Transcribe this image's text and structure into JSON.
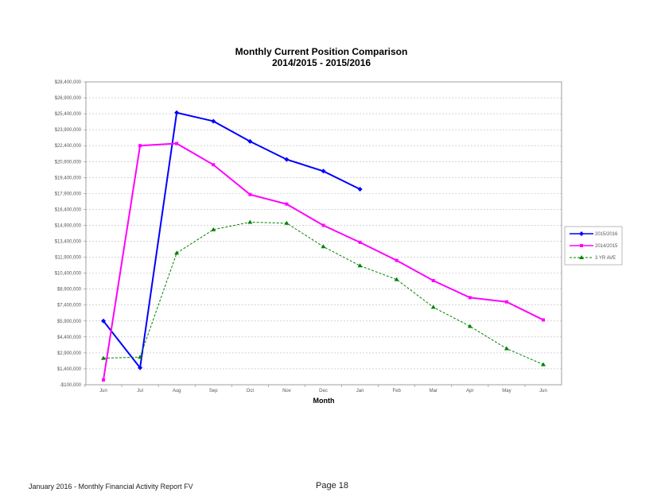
{
  "chart_data": {
    "type": "line",
    "title": "Monthly Current Position Comparison",
    "subtitle": "2014/2015 - 2015/2016",
    "xlabel": "Month",
    "ylabel": "",
    "categories": [
      "Jun",
      "Jul",
      "Aug",
      "Sep",
      "Oct",
      "Nov",
      "Dec",
      "Jan",
      "Feb",
      "Mar",
      "Apr",
      "May",
      "Jun"
    ],
    "ylim": [
      -100000,
      28400000
    ],
    "yticks": [
      -100000,
      1400000,
      2900000,
      4400000,
      5900000,
      7400000,
      8900000,
      10400000,
      11900000,
      13400000,
      14900000,
      16400000,
      17900000,
      19400000,
      20900000,
      22400000,
      23900000,
      25400000,
      26900000,
      28400000
    ],
    "ytick_labels": [
      "-$100,000",
      "$1,400,000",
      "$2,900,000",
      "$4,400,000",
      "$5,900,000",
      "$7,400,000",
      "$8,900,000",
      "$10,400,000",
      "$11,900,000",
      "$13,400,000",
      "$14,900,000",
      "$16,400,000",
      "$17,900,000",
      "$19,400,000",
      "$20,900,000",
      "$22,400,000",
      "$23,900,000",
      "$25,400,000",
      "$26,900,000",
      "$28,400,000"
    ],
    "grid": true,
    "legend_position": "right",
    "series": [
      {
        "name": "2015/2016",
        "color": "#0000ff",
        "marker": "diamond",
        "dash": false,
        "values": [
          5900000,
          1500000,
          25500000,
          24700000,
          22800000,
          21100000,
          20000000,
          18300000,
          null,
          null,
          null,
          null,
          null
        ]
      },
      {
        "name": "2014/2015",
        "color": "#ff00ff",
        "marker": "square",
        "dash": false,
        "values": [
          350000,
          22400000,
          22600000,
          20600000,
          17800000,
          16900000,
          14900000,
          13300000,
          11600000,
          9700000,
          8100000,
          7700000,
          6000000
        ]
      },
      {
        "name": "3 YR AVE",
        "color": "#008000",
        "marker": "triangle",
        "dash": true,
        "values": [
          2400000,
          2500000,
          12300000,
          14500000,
          15200000,
          15100000,
          12900000,
          11100000,
          9800000,
          7200000,
          5400000,
          3300000,
          1800000
        ]
      }
    ]
  },
  "footer": {
    "report": "January 2016 - Monthly Financial Activity Report FV",
    "page": "Page 18"
  }
}
